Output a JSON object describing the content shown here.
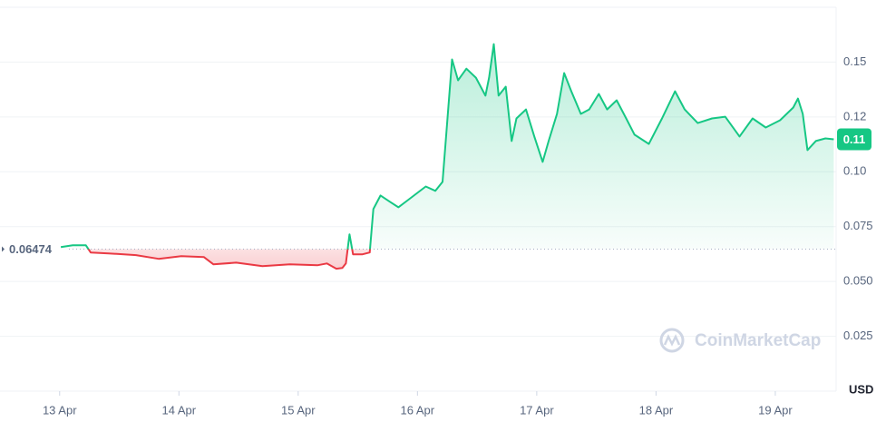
{
  "chart_data": {
    "type": "line",
    "y_axis_label": "USD",
    "watermark": "CoinMarketCap",
    "baseline": 0.06474,
    "current_label": "0.11",
    "up_color": "#16c784",
    "down_color": "#ea3943",
    "grid": true,
    "xlim": [
      12.5,
      19.51
    ],
    "ylim": [
      0,
      0.175
    ],
    "xticks": [
      {
        "value": 13,
        "label": "13 Apr"
      },
      {
        "value": 14,
        "label": "14 Apr"
      },
      {
        "value": 15,
        "label": "15 Apr"
      },
      {
        "value": 16,
        "label": "16 Apr"
      },
      {
        "value": 17,
        "label": "17 Apr"
      },
      {
        "value": 18,
        "label": "18 Apr"
      },
      {
        "value": 19,
        "label": "19 Apr"
      }
    ],
    "yticks": [
      0.025,
      {
        "value": 0.05,
        "label": "0.050"
      },
      0.075,
      {
        "value": 0.1,
        "label": "0.10"
      },
      {
        "value": 0.125,
        "label": "0.12"
      },
      0.15
    ],
    "x": [
      13.01,
      13.11,
      13.22,
      13.26,
      13.41,
      13.64,
      13.83,
      14.02,
      14.21,
      14.29,
      14.48,
      14.7,
      14.93,
      15.16,
      15.24,
      15.32,
      15.37,
      15.4,
      15.43,
      15.46,
      15.54,
      15.6,
      15.63,
      15.69,
      15.77,
      15.84,
      15.92,
      16.0,
      16.07,
      16.15,
      16.21,
      16.24,
      16.29,
      16.34,
      16.41,
      16.49,
      16.57,
      16.6,
      16.64,
      16.68,
      16.74,
      16.79,
      16.83,
      16.91,
      16.98,
      17.05,
      17.1,
      17.17,
      17.23,
      17.29,
      17.37,
      17.44,
      17.52,
      17.59,
      17.67,
      17.75,
      17.82,
      17.94,
      18.05,
      18.16,
      18.24,
      18.35,
      18.47,
      18.58,
      18.7,
      18.81,
      18.92,
      19.04,
      19.15,
      19.19,
      19.23,
      19.27,
      19.34,
      19.42,
      19.49
    ],
    "values": [
      0.0657,
      0.0665,
      0.0665,
      0.0632,
      0.0628,
      0.062,
      0.0603,
      0.0615,
      0.0611,
      0.0578,
      0.0586,
      0.057,
      0.0578,
      0.0574,
      0.0582,
      0.0558,
      0.0562,
      0.0582,
      0.0715,
      0.0624,
      0.0624,
      0.0632,
      0.083,
      0.0892,
      0.0863,
      0.0838,
      0.0871,
      0.0904,
      0.0933,
      0.0913,
      0.0954,
      0.1161,
      0.1512,
      0.1417,
      0.147,
      0.1429,
      0.1347,
      0.1429,
      0.1582,
      0.1347,
      0.1388,
      0.114,
      0.1243,
      0.1284,
      0.1161,
      0.1045,
      0.114,
      0.1264,
      0.145,
      0.1367,
      0.1264,
      0.1284,
      0.1355,
      0.1284,
      0.1326,
      0.1243,
      0.1169,
      0.1127,
      0.1243,
      0.1367,
      0.1284,
      0.1222,
      0.1243,
      0.1251,
      0.1161,
      0.1243,
      0.1202,
      0.1235,
      0.1293,
      0.1334,
      0.1264,
      0.1099,
      0.114,
      0.1152,
      0.1148
    ]
  }
}
